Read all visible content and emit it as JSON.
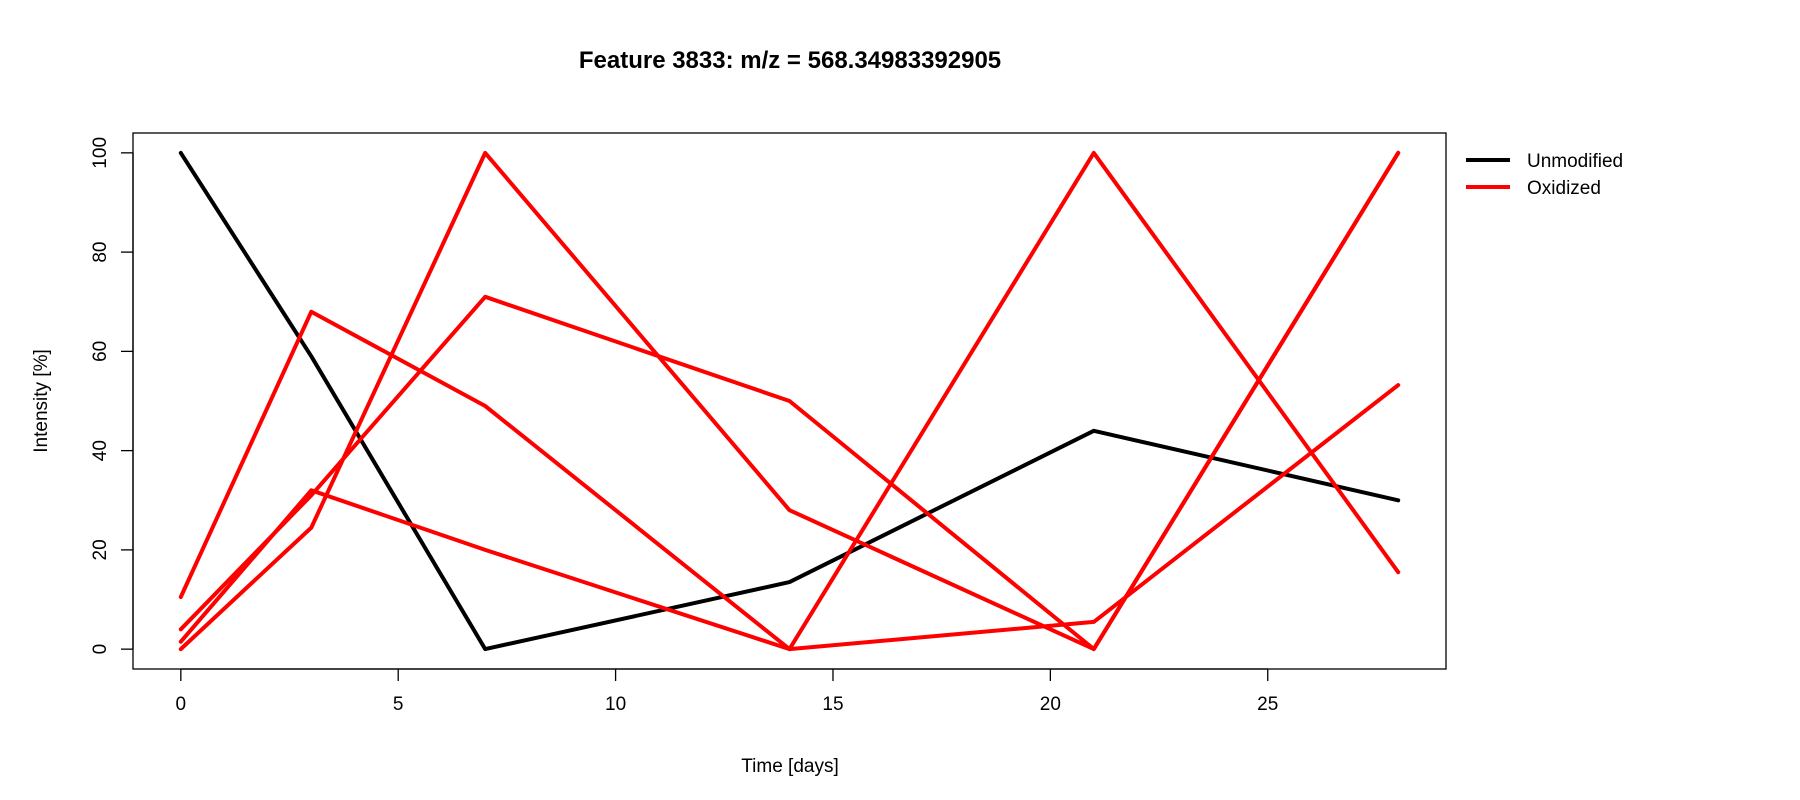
{
  "chart_data": {
    "type": "line",
    "title": "Feature 3833: m/z = 568.34983392905",
    "xlabel": "Time [days]",
    "ylabel": "Intensity [%]",
    "xlim": [
      -1.1,
      29.1
    ],
    "ylim": [
      -4,
      104
    ],
    "xticks": [
      0,
      5,
      10,
      15,
      20,
      25
    ],
    "yticks": [
      0,
      20,
      40,
      60,
      80,
      100
    ],
    "x": [
      0,
      3,
      7,
      14,
      21,
      28
    ],
    "legend_position": "outside-top-right",
    "legend": [
      {
        "label": "Unmodified",
        "color": "#000000"
      },
      {
        "label": "Oxidized",
        "color": "#ff0000"
      }
    ],
    "series": [
      {
        "group": "Unmodified",
        "color": "#000000",
        "values": [
          100,
          59,
          0,
          13.5,
          44,
          30
        ]
      },
      {
        "group": "Oxidized",
        "color": "#ff0000",
        "values": [
          10.5,
          68,
          49,
          0,
          100,
          15.5
        ]
      },
      {
        "group": "Oxidized",
        "color": "#ff0000",
        "values": [
          0,
          24.5,
          100,
          28,
          0,
          100
        ]
      },
      {
        "group": "Oxidized",
        "color": "#ff0000",
        "values": [
          1.5,
          32,
          20,
          0,
          5.5,
          53.2
        ]
      },
      {
        "group": "Oxidized",
        "color": "#ff0000",
        "values": [
          4,
          31,
          71,
          50,
          0,
          100
        ]
      }
    ]
  }
}
